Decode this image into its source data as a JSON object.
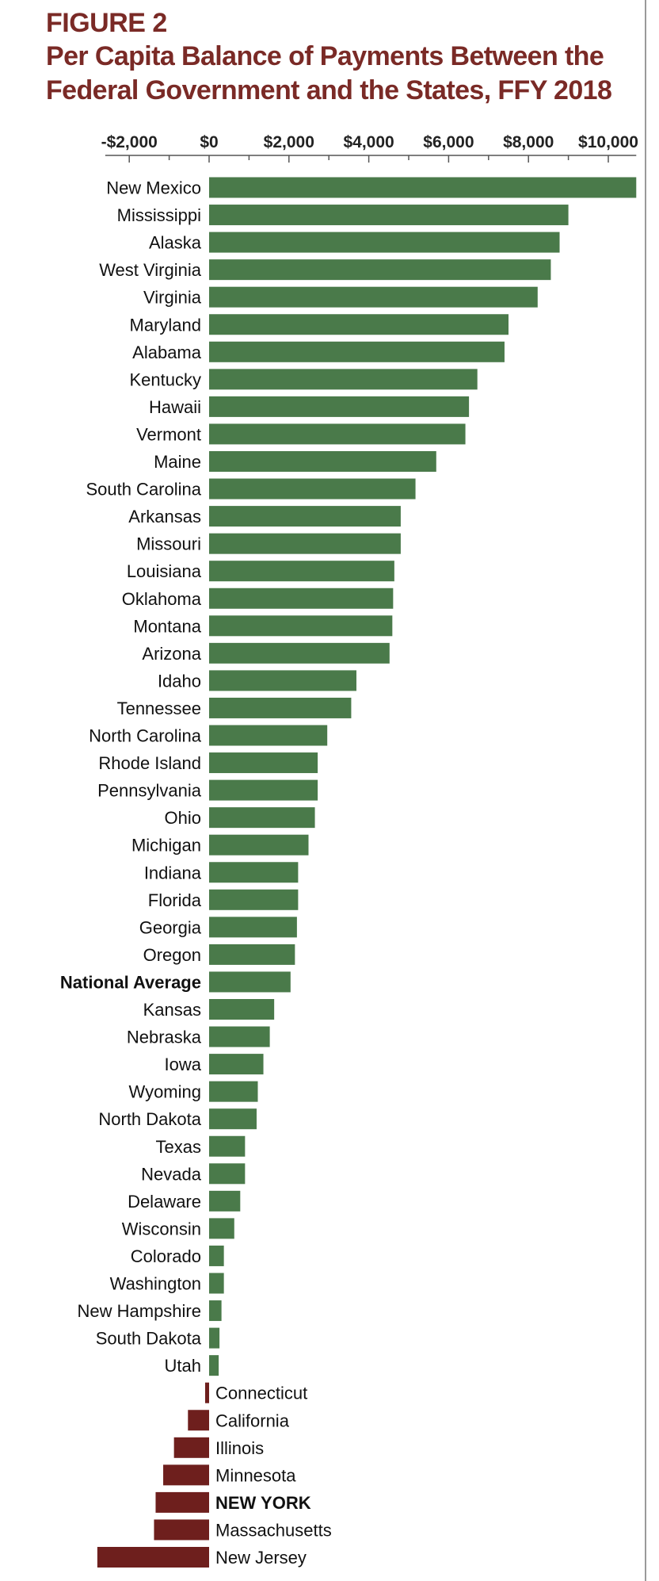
{
  "figure": {
    "label": "FIGURE 2",
    "title": "Per Capita Balance of Payments Between the Federal Government and the States, FFY 2018"
  },
  "chart_data": {
    "type": "bar",
    "orientation": "horizontal",
    "title": "Per Capita Balance of Payments Between the Federal Government and the States, FFY 2018",
    "xlim": [
      -2800,
      10700
    ],
    "grid": false,
    "x_ticks": [
      -2000,
      0,
      2000,
      4000,
      6000,
      8000,
      10000
    ],
    "x_tick_labels": [
      "-$2,000",
      "$0",
      "$2,000",
      "$4,000",
      "$6,000",
      "$8,000",
      "$10,000"
    ],
    "categories": [
      "New Mexico",
      "Mississippi",
      "Alaska",
      "West Virginia",
      "Virginia",
      "Maryland",
      "Alabama",
      "Kentucky",
      "Hawaii",
      "Vermont",
      "Maine",
      "South Carolina",
      "Arkansas",
      "Missouri",
      "Louisiana",
      "Oklahoma",
      "Montana",
      "Arizona",
      "Idaho",
      "Tennessee",
      "North Carolina",
      "Rhode Island",
      "Pennsylvania",
      "Ohio",
      "Michigan",
      "Indiana",
      "Florida",
      "Georgia",
      "Oregon",
      "National Average",
      "Kansas",
      "Nebraska",
      "Iowa",
      "Wyoming",
      "North Dakota",
      "Texas",
      "Nevada",
      "Delaware",
      "Wisconsin",
      "Colorado",
      "Washington",
      "New Hampshire",
      "South Dakota",
      "Utah",
      "Connecticut",
      "California",
      "Illinois",
      "Minnesota",
      "NEW YORK",
      "Massachusetts",
      "New Jersey"
    ],
    "values": [
      10700,
      9000,
      8780,
      8560,
      8230,
      7500,
      7400,
      6720,
      6510,
      6420,
      5690,
      5170,
      4800,
      4800,
      4640,
      4610,
      4590,
      4520,
      3690,
      3560,
      2960,
      2720,
      2720,
      2650,
      2490,
      2230,
      2230,
      2200,
      2150,
      2040,
      1630,
      1520,
      1360,
      1220,
      1190,
      900,
      900,
      780,
      630,
      370,
      370,
      310,
      260,
      240,
      -100,
      -530,
      -880,
      -1150,
      -1340,
      -1380,
      -2800
    ],
    "bold_categories": [
      "National Average",
      "NEW YORK"
    ],
    "colors": {
      "positive": "#4a7a4a",
      "negative": "#6e1f1d",
      "title": "#7a2a26",
      "axis": "#555555"
    }
  }
}
